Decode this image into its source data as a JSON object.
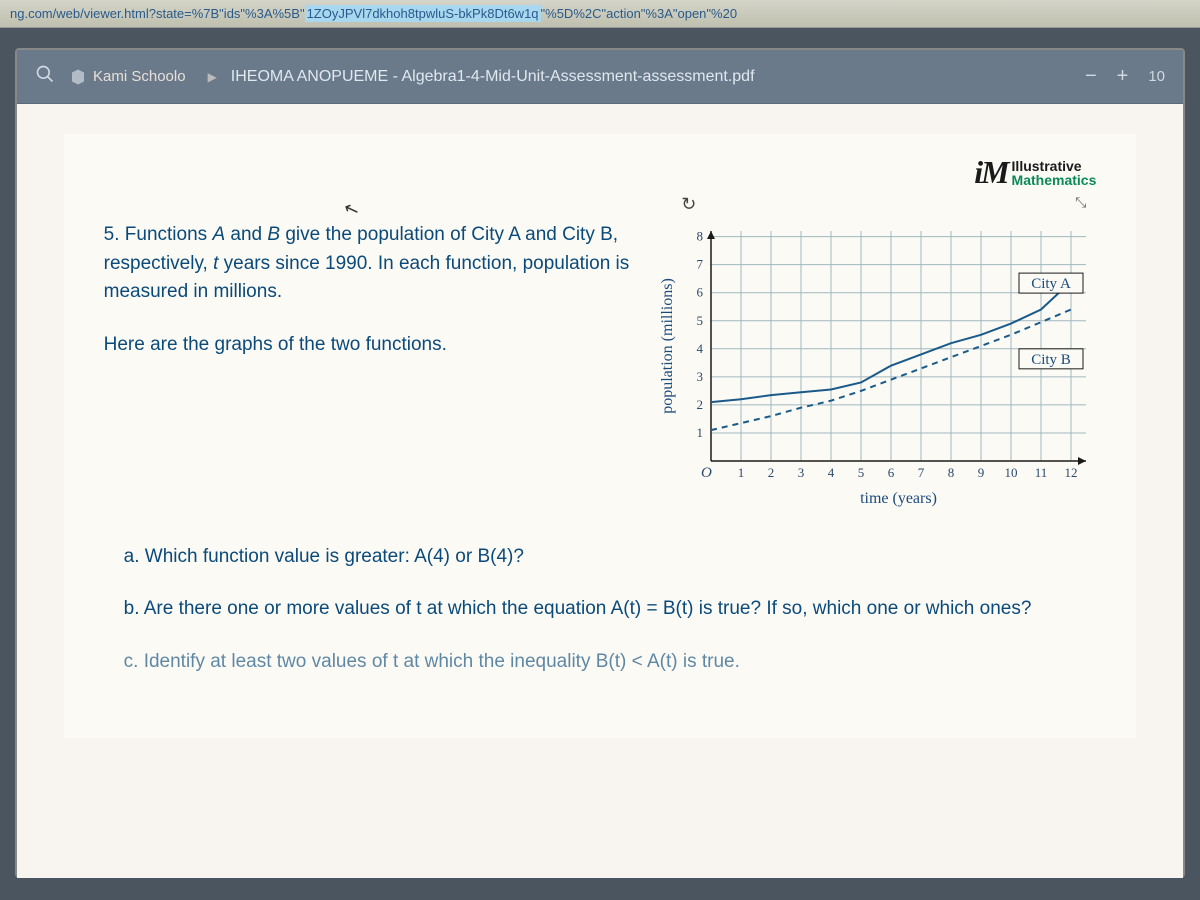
{
  "url": {
    "prefix": "ng.com/web/viewer.html?state=%7B\"ids\"%3A%5B\"",
    "highlight": "1ZOyJPVl7dkhoh8tpwluS-bkPk8Dt6w1q",
    "suffix": "\"%5D%2C\"action\"%3A\"open\"%20"
  },
  "toolbar": {
    "app_name": "Kami Schoolo",
    "document_title": "IHEOMA ANOPUEME - Algebra1-4-Mid-Unit-Assessment-assessment.pdf",
    "minus": "−",
    "plus": "+",
    "zoom": "10"
  },
  "logo": {
    "mark": "iM",
    "line1": "Illustrative",
    "line2": "Mathematics"
  },
  "problem": {
    "number": "5.",
    "text_before_A": "Functions ",
    "A": "A",
    "and": " and ",
    "B": "B",
    "text_after_B": " give the population of City A and City B, respectively, ",
    "t": "t",
    "text_after_t": " years since 1990. In each function, population is measured in millions.",
    "second_para": "Here are the graphs of the two functions."
  },
  "questions": {
    "a_label": "a.",
    "a_text": " Which function value is greater: ",
    "a_A4": "A(4)",
    "a_or": " or ",
    "a_B4": "B(4)",
    "a_qmark": "?",
    "b_label": "b.",
    "b_text1": " Are there one or more values of ",
    "b_t": "t",
    "b_text2": " at which the equation ",
    "b_eq": "A(t) = B(t)",
    "b_text3": " is true? If so, which one or which ones?",
    "c_label": "c.",
    "c_text1": " Identify at least two values of ",
    "c_t": "t",
    "c_text2": " at which the inequality ",
    "c_ineq": "B(t) < A(t)",
    "c_text3": " is true."
  },
  "chart": {
    "type": "line",
    "x_label": "time (years)",
    "y_label": "population (millions)",
    "x_min": 0,
    "x_max": 12.5,
    "y_min": 0,
    "y_max": 8.2,
    "x_ticks": [
      1,
      2,
      3,
      4,
      5,
      6,
      7,
      8,
      9,
      10,
      11,
      12
    ],
    "y_ticks": [
      1,
      2,
      3,
      4,
      5,
      6,
      7,
      8
    ],
    "origin_label": "O",
    "grid_color": "#a0b8c0",
    "axis_color": "#1a1a1a",
    "background_color": "#fcfaf5",
    "label_fontsize": 16,
    "tick_fontsize": 13,
    "series_a": {
      "label": "City A",
      "color": "#1a5a8a",
      "style": "solid",
      "width": 2,
      "points": [
        [
          0,
          2.1
        ],
        [
          1,
          2.2
        ],
        [
          2,
          2.35
        ],
        [
          3,
          2.45
        ],
        [
          4,
          2.55
        ],
        [
          5,
          2.8
        ],
        [
          6,
          3.4
        ],
        [
          7,
          3.8
        ],
        [
          8,
          4.2
        ],
        [
          9,
          4.5
        ],
        [
          10,
          4.9
        ],
        [
          11,
          5.4
        ],
        [
          12,
          6.4
        ]
      ]
    },
    "series_b": {
      "label": "City B",
      "color": "#1a5a8a",
      "style": "dashed",
      "width": 2,
      "points": [
        [
          0,
          1.1
        ],
        [
          1,
          1.35
        ],
        [
          2,
          1.6
        ],
        [
          3,
          1.9
        ],
        [
          4,
          2.15
        ],
        [
          5,
          2.5
        ],
        [
          6,
          2.9
        ],
        [
          7,
          3.3
        ],
        [
          8,
          3.7
        ],
        [
          9,
          4.1
        ],
        [
          10,
          4.5
        ],
        [
          11,
          4.95
        ],
        [
          12,
          5.4
        ]
      ]
    }
  }
}
